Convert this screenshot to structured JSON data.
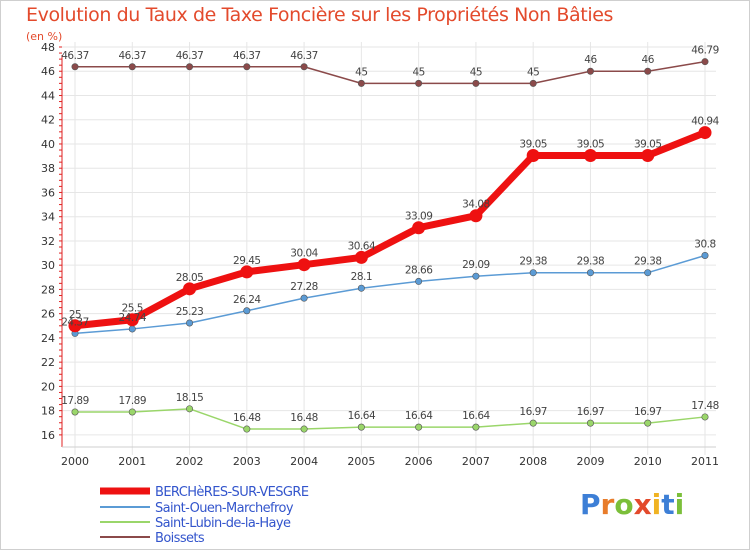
{
  "title": "Evolution du Taux de Taxe Foncière sur les Propriétés Non Bâties",
  "unit_label": "(en %)",
  "logo": {
    "letters": [
      "P",
      "r",
      "o",
      "x",
      "i",
      "t",
      "i"
    ]
  },
  "colors": {
    "accent": "#e34a2c",
    "axis": "#e02020",
    "grid": "#e6e6e6"
  },
  "chart_data": {
    "type": "line",
    "title": "Evolution du Taux de Taxe Foncière sur les Propriétés Non Bâties",
    "ylabel": "(en %)",
    "xlabel": "",
    "categories": [
      "2000",
      "2001",
      "2002",
      "2003",
      "2004",
      "2005",
      "2006",
      "2007",
      "2008",
      "2009",
      "2010",
      "2011"
    ],
    "ylim": [
      15,
      48
    ],
    "yticks": [
      16,
      18,
      20,
      22,
      24,
      26,
      28,
      30,
      32,
      34,
      36,
      38,
      40,
      42,
      44,
      46,
      48
    ],
    "grid": true,
    "legend_position": "bottom-left",
    "series": [
      {
        "name": "BERCHèRES-SUR-VESGRE",
        "color": "#ee1111",
        "emphasis": true,
        "values": [
          25,
          25.5,
          28.05,
          29.45,
          30.04,
          30.64,
          33.09,
          34.08,
          39.05,
          39.05,
          39.05,
          40.94
        ],
        "labels": [
          "25",
          "25.5",
          "28.05",
          "29.45",
          "30.04",
          "30.64",
          "33.09",
          "34.08",
          "39.05",
          "39.05",
          "39.05",
          "40.94"
        ]
      },
      {
        "name": "Saint-Ouen-Marchefroy",
        "color": "#5b9bd5",
        "emphasis": false,
        "values": [
          24.37,
          24.74,
          25.23,
          26.24,
          27.28,
          28.1,
          28.66,
          29.09,
          29.38,
          29.38,
          29.38,
          30.8
        ],
        "labels": [
          "24.37",
          "24.74",
          "25.23",
          "26.24",
          "27.28",
          "28.1",
          "28.66",
          "29.09",
          "29.38",
          "29.38",
          "29.38",
          "30.8"
        ]
      },
      {
        "name": "Saint-Lubin-de-la-Haye",
        "color": "#9ad66a",
        "emphasis": false,
        "values": [
          17.89,
          17.89,
          18.15,
          16.48,
          16.48,
          16.64,
          16.64,
          16.64,
          16.97,
          16.97,
          16.97,
          17.48
        ],
        "labels": [
          "17.89",
          "17.89",
          "18.15",
          "16.48",
          "16.48",
          "16.64",
          "16.64",
          "16.64",
          "16.97",
          "16.97",
          "16.97",
          "17.48"
        ]
      },
      {
        "name": "Boissets",
        "color": "#8b4a4a",
        "emphasis": false,
        "values": [
          46.37,
          46.37,
          46.37,
          46.37,
          46.37,
          45,
          45,
          45,
          45,
          46,
          46,
          46.79
        ],
        "labels": [
          "46.37",
          "46.37",
          "46.37",
          "46.37",
          "46.37",
          "45",
          "45",
          "45",
          "45",
          "46",
          "46",
          "46.79"
        ]
      }
    ]
  }
}
